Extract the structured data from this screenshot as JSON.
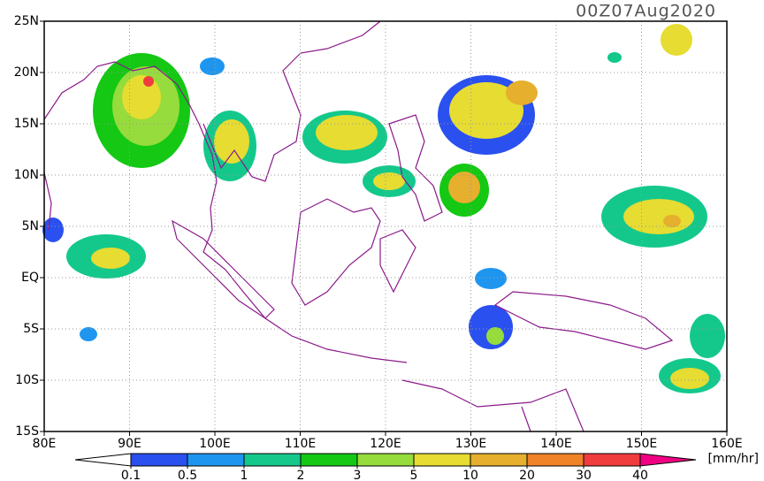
{
  "title": "00Z07Aug2020",
  "map": {
    "lon_range": [
      80,
      160
    ],
    "lat_range": [
      -15,
      25
    ],
    "grid": true,
    "lon_ticks": [
      {
        "value": 80,
        "label": "80E"
      },
      {
        "value": 90,
        "label": "90E"
      },
      {
        "value": 100,
        "label": "100E"
      },
      {
        "value": 110,
        "label": "110E"
      },
      {
        "value": 120,
        "label": "120E"
      },
      {
        "value": 130,
        "label": "130E"
      },
      {
        "value": 140,
        "label": "140E"
      },
      {
        "value": 150,
        "label": "150E"
      },
      {
        "value": 160,
        "label": "160E"
      }
    ],
    "lat_ticks": [
      {
        "value": 25,
        "label": "25N"
      },
      {
        "value": 20,
        "label": "20N"
      },
      {
        "value": 15,
        "label": "15N"
      },
      {
        "value": 10,
        "label": "10N"
      },
      {
        "value": 5,
        "label": "5N"
      },
      {
        "value": 0,
        "label": "EQ"
      },
      {
        "value": -5,
        "label": "5S"
      },
      {
        "value": -10,
        "label": "10S"
      },
      {
        "value": -15,
        "label": "15S"
      }
    ]
  },
  "colorbar": {
    "levels": [
      0.1,
      0.5,
      1,
      2,
      3,
      5,
      10,
      20,
      30,
      40
    ],
    "colors": [
      "#ffffff",
      "#2a50f0",
      "#1e96f0",
      "#14c88c",
      "#14c814",
      "#96dc3c",
      "#e6dc32",
      "#e6af2d",
      "#f08228",
      "#f03c3c",
      "#f00082"
    ],
    "unit": "[mm/hr]"
  }
}
